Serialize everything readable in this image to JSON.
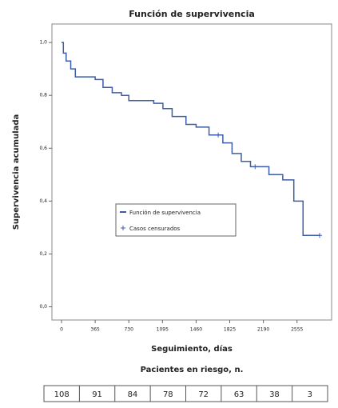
{
  "chart_data": {
    "type": "step",
    "title": "Función de supervivencia",
    "xlabel": "Seguimiento, días",
    "ylabel": "Supervivencia acumulada",
    "xlim": [
      -104,
      2930
    ],
    "ylim": [
      -0.05,
      1.07
    ],
    "xticks": [
      0,
      365,
      730,
      1095,
      1460,
      1825,
      2190,
      2555
    ],
    "yticks": [
      {
        "value": 0,
        "label": "0,0"
      },
      {
        "value": 0.2,
        "label": "0,2"
      },
      {
        "value": 0.4,
        "label": "0,4"
      },
      {
        "value": 0.6,
        "label": "0,6"
      },
      {
        "value": 0.8,
        "label": "0,8"
      },
      {
        "value": 1,
        "label": "1,0"
      }
    ],
    "series": [
      {
        "name": "Función de supervivencia",
        "color": "#3d5da8",
        "x": [
          0,
          20,
          50,
          100,
          150,
          365,
          450,
          550,
          650,
          730,
          1000,
          1100,
          1200,
          1350,
          1460,
          1600,
          1750,
          1850,
          1950,
          2050,
          2250,
          2400,
          2520,
          2620
        ],
        "values": [
          1.0,
          0.96,
          0.93,
          0.9,
          0.87,
          0.86,
          0.83,
          0.81,
          0.8,
          0.78,
          0.77,
          0.75,
          0.72,
          0.69,
          0.68,
          0.65,
          0.62,
          0.58,
          0.55,
          0.53,
          0.5,
          0.48,
          0.4,
          0.27
        ]
      },
      {
        "name": "Casos censurados",
        "color": "#3d5da8",
        "x": [
          1700,
          2100,
          2800
        ],
        "values": [
          0.65,
          0.53,
          0.27
        ]
      }
    ],
    "at_risk_title": "Pacientes en riesgo, n.",
    "at_risk": [
      108,
      91,
      84,
      78,
      72,
      63,
      38,
      3
    ]
  }
}
